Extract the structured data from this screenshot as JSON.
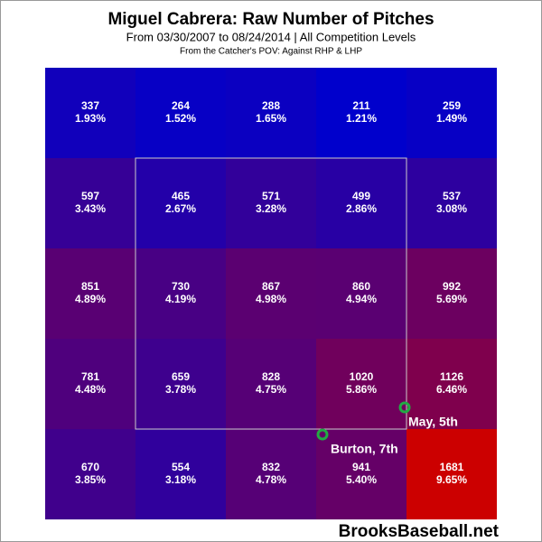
{
  "chart_data": {
    "type": "heatmap",
    "title": "Miguel Cabrera: Raw Number of Pitches",
    "subtitle": "From 03/30/2007 to 08/24/2014 | All Competition Levels",
    "note": "From the Catcher's POV:  Against RHP & LHP",
    "values": [
      [
        337,
        264,
        288,
        211,
        259
      ],
      [
        597,
        465,
        571,
        499,
        537
      ],
      [
        851,
        730,
        867,
        860,
        992
      ],
      [
        781,
        659,
        828,
        1020,
        1126
      ],
      [
        670,
        554,
        832,
        941,
        1681
      ]
    ],
    "percents": [
      [
        1.93,
        1.52,
        1.65,
        1.21,
        1.49
      ],
      [
        3.43,
        2.67,
        3.28,
        2.86,
        3.08
      ],
      [
        4.89,
        4.19,
        4.98,
        4.94,
        5.69
      ],
      [
        4.48,
        3.78,
        4.75,
        5.86,
        6.46
      ],
      [
        3.85,
        3.18,
        4.78,
        5.4,
        9.65
      ]
    ],
    "percent_labels": [
      [
        "1.93%",
        "1.52%",
        "1.65%",
        "1.21%",
        "1.49%"
      ],
      [
        "3.43%",
        "2.67%",
        "3.28%",
        "2.86%",
        "3.08%"
      ],
      [
        "4.89%",
        "4.19%",
        "4.98%",
        "4.94%",
        "5.69%"
      ],
      [
        "4.48%",
        "3.78%",
        "4.75%",
        "5.86%",
        "6.46%"
      ],
      [
        "3.85%",
        "3.18%",
        "4.78%",
        "5.40%",
        "9.65%"
      ]
    ],
    "colorscale": [
      "#0000cc",
      "#cc0000"
    ],
    "annotations": [
      "May, 5th",
      "Burton, 7th"
    ],
    "watermark": "BrooksBaseball.net"
  }
}
